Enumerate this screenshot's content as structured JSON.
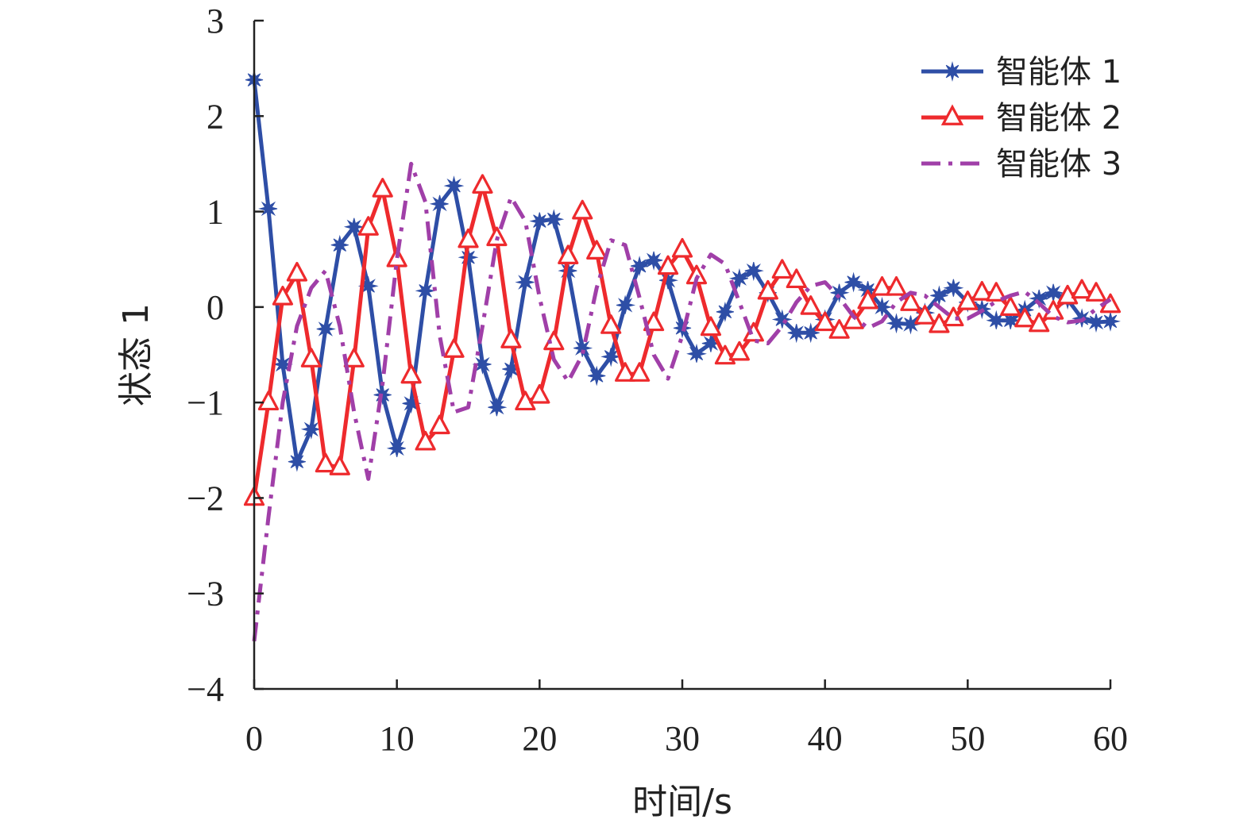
{
  "chart_data": {
    "type": "line",
    "title": "",
    "xlabel": "时间/s",
    "ylabel": "状态 1",
    "xlim": [
      0,
      60
    ],
    "ylim": [
      -4,
      3
    ],
    "xticks": [
      0,
      10,
      20,
      30,
      40,
      50,
      60
    ],
    "xtick_labels": [
      "0",
      "10",
      "20",
      "30",
      "40",
      "50",
      "60"
    ],
    "yticks": [
      -4,
      -3,
      -2,
      -1,
      0,
      1,
      2,
      3
    ],
    "ytick_labels": [
      "−4",
      "−3",
      "−2",
      "−1",
      "0",
      "1",
      "2",
      "3"
    ],
    "grid": false,
    "legend_position": "top-right",
    "series": [
      {
        "name": "智能体 1",
        "color": "#2e4ea6",
        "style": "solid",
        "marker": "star",
        "x": [
          0,
          1,
          2,
          3,
          4,
          5,
          6,
          7,
          8,
          9,
          10,
          11,
          12,
          13,
          14,
          15,
          16,
          17,
          18,
          19,
          20,
          21,
          22,
          23,
          24,
          25,
          26,
          27,
          28,
          29,
          30,
          31,
          32,
          33,
          34,
          35,
          36,
          37,
          38,
          39,
          40,
          41,
          42,
          43,
          44,
          45,
          46,
          47,
          48,
          49,
          50,
          51,
          52,
          53,
          54,
          55,
          56,
          57,
          58,
          59,
          60
        ],
        "y": [
          2.38,
          1.03,
          -0.6,
          -1.62,
          -1.28,
          -0.23,
          0.65,
          0.84,
          0.22,
          -0.92,
          -1.48,
          -1.01,
          0.17,
          1.08,
          1.27,
          0.52,
          -0.6,
          -1.05,
          -0.65,
          0.26,
          0.9,
          0.92,
          0.38,
          -0.43,
          -0.72,
          -0.52,
          0.02,
          0.43,
          0.49,
          0.28,
          -0.22,
          -0.49,
          -0.38,
          -0.05,
          0.3,
          0.38,
          0.15,
          -0.13,
          -0.27,
          -0.27,
          -0.13,
          0.15,
          0.26,
          0.18,
          0.0,
          -0.17,
          -0.18,
          -0.06,
          0.12,
          0.2,
          0.05,
          -0.02,
          -0.14,
          -0.14,
          -0.03,
          0.09,
          0.15,
          0.08,
          -0.12,
          -0.16,
          -0.15
        ]
      },
      {
        "name": "智能体 2",
        "color": "#ee2a2d",
        "style": "solid",
        "marker": "triangle",
        "x": [
          0,
          1,
          2,
          3,
          4,
          5,
          6,
          7,
          8,
          9,
          10,
          11,
          12,
          13,
          14,
          15,
          16,
          17,
          18,
          19,
          20,
          21,
          22,
          23,
          24,
          25,
          26,
          27,
          28,
          29,
          30,
          31,
          32,
          33,
          34,
          35,
          36,
          37,
          38,
          39,
          40,
          41,
          42,
          43,
          44,
          45,
          46,
          47,
          48,
          49,
          50,
          51,
          52,
          53,
          54,
          55,
          56,
          57,
          58,
          59,
          60
        ],
        "y": [
          -2.0,
          -1.0,
          0.1,
          0.35,
          -0.55,
          -1.65,
          -1.68,
          -0.55,
          0.83,
          1.23,
          0.5,
          -0.72,
          -1.42,
          -1.25,
          -0.45,
          0.7,
          1.27,
          0.72,
          -0.35,
          -1.0,
          -0.93,
          -0.37,
          0.53,
          1.0,
          0.58,
          -0.2,
          -0.7,
          -0.7,
          -0.17,
          0.42,
          0.6,
          0.32,
          -0.22,
          -0.52,
          -0.48,
          -0.28,
          0.16,
          0.38,
          0.28,
          0.0,
          -0.17,
          -0.25,
          -0.15,
          0.06,
          0.2,
          0.2,
          0.04,
          -0.1,
          -0.19,
          -0.12,
          0.05,
          0.15,
          0.14,
          -0.01,
          -0.13,
          -0.18,
          -0.05,
          0.11,
          0.17,
          0.14,
          0.02
        ]
      },
      {
        "name": "智能体 3",
        "color": "#a03fa8",
        "style": "dash-dot",
        "marker": "none",
        "x": [
          0,
          1,
          2,
          3,
          4,
          5,
          6,
          7,
          8,
          9,
          10,
          11,
          12,
          13,
          14,
          15,
          16,
          17,
          18,
          19,
          20,
          21,
          22,
          23,
          24,
          25,
          26,
          27,
          28,
          29,
          30,
          31,
          32,
          33,
          34,
          35,
          36,
          37,
          38,
          39,
          40,
          41,
          42,
          43,
          44,
          45,
          46,
          47,
          48,
          49,
          50,
          51,
          52,
          53,
          54,
          55,
          56,
          57,
          58,
          59,
          60
        ],
        "y": [
          -3.5,
          -2.2,
          -1.0,
          -0.2,
          0.2,
          0.38,
          -0.2,
          -1.1,
          -1.8,
          -0.8,
          0.5,
          1.5,
          1.1,
          -0.3,
          -1.1,
          -1.05,
          -0.2,
          0.7,
          1.15,
          0.9,
          0.1,
          -0.55,
          -0.78,
          -0.5,
          0.2,
          0.7,
          0.65,
          0.1,
          -0.5,
          -0.75,
          -0.3,
          0.3,
          0.55,
          0.45,
          0.05,
          -0.35,
          -0.38,
          -0.2,
          0.05,
          0.22,
          0.26,
          0.1,
          -0.1,
          -0.22,
          -0.15,
          0.05,
          0.15,
          0.12,
          0.0,
          -0.12,
          -0.12,
          -0.04,
          0.06,
          0.12,
          0.16,
          0.04,
          -0.1,
          -0.16,
          -0.14,
          -0.02,
          0.08
        ]
      }
    ]
  }
}
